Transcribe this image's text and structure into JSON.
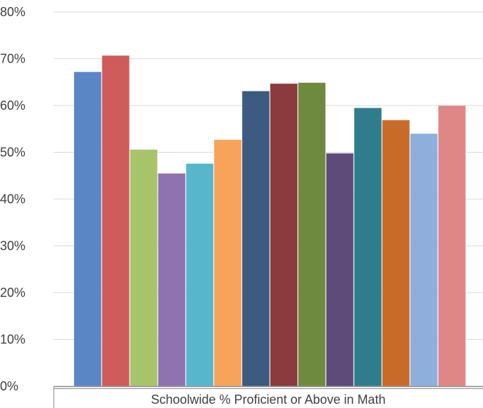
{
  "chart_data": {
    "type": "bar",
    "categories": [
      "Schoolwide % Proficient or Above in Math"
    ],
    "series": [
      {
        "values": [
          67.2
        ],
        "color": "#5b86c6"
      },
      {
        "values": [
          70.7
        ],
        "color": "#cf5b5b"
      },
      {
        "values": [
          50.6
        ],
        "color": "#a8c46a"
      },
      {
        "values": [
          45.5
        ],
        "color": "#8f73b0"
      },
      {
        "values": [
          47.6
        ],
        "color": "#57b6cc"
      },
      {
        "values": [
          52.7
        ],
        "color": "#f7a35a"
      },
      {
        "values": [
          63.1
        ],
        "color": "#3d5a80"
      },
      {
        "values": [
          64.7
        ],
        "color": "#8b3a3e"
      },
      {
        "values": [
          64.9
        ],
        "color": "#6e8a3e"
      },
      {
        "values": [
          49.8
        ],
        "color": "#5e4b7a"
      },
      {
        "values": [
          59.5
        ],
        "color": "#2f7d8c"
      },
      {
        "values": [
          56.9
        ],
        "color": "#c86b28"
      },
      {
        "values": [
          54.0
        ],
        "color": "#8eafdc"
      },
      {
        "values": [
          60.0
        ],
        "color": "#df8686"
      }
    ],
    "yticks": [
      "0%",
      "10%",
      "20%",
      "30%",
      "40%",
      "50%",
      "60%",
      "70%",
      "80%"
    ],
    "ylim": [
      0,
      80
    ],
    "grid": true,
    "legend": "none",
    "title": "",
    "xlabel": "",
    "ylabel": ""
  }
}
